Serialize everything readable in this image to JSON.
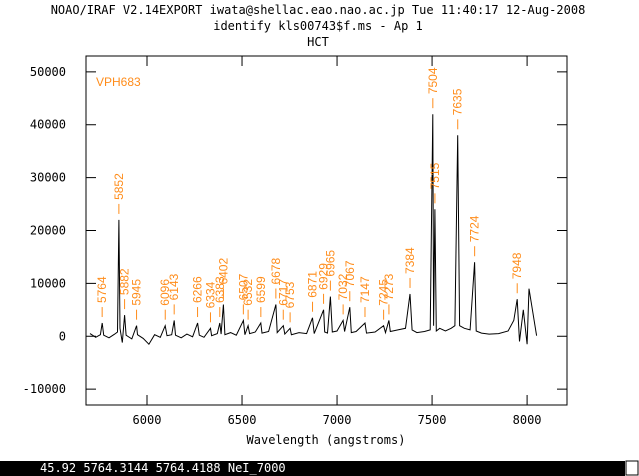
{
  "header": {
    "line1": "NOAO/IRAF V2.14EXPORT iwata@shellac.eao.nao.ac.jp Tue 11:40:17 12-Aug-2008",
    "line2": "identify kls00743$f.ms - Ap 1"
  },
  "status_bar": "45.92  5764.3144  5764.4188 NeI_7000",
  "chart_data": {
    "type": "line",
    "title": "HCT",
    "xlabel": "Wavelength (angstroms)",
    "annotation_title": "VPH683",
    "xlim": [
      5679,
      8210
    ],
    "ylim": [
      -13000,
      53000
    ],
    "xticks": [
      6000,
      6500,
      7000,
      7500,
      8000
    ],
    "yticks": [
      -10000,
      0,
      10000,
      20000,
      30000,
      40000,
      50000
    ],
    "line_color": "#000000",
    "annotation_color": "#ff8c1a",
    "annotations": [
      5764,
      5852,
      5882,
      5945,
      6096,
      6143,
      6266,
      6334,
      6383,
      6402,
      6507,
      6532,
      6599,
      6678,
      6717,
      6753,
      6871,
      6929,
      6965,
      7032,
      7067,
      7147,
      7245,
      7273,
      7384,
      7504,
      7515,
      7635,
      7724,
      7948
    ],
    "x": [
      5700,
      5730,
      5755,
      5764,
      5772,
      5800,
      5830,
      5845,
      5852,
      5858,
      5870,
      5882,
      5890,
      5920,
      5945,
      5950,
      5980,
      6010,
      6040,
      6070,
      6096,
      6105,
      6130,
      6143,
      6150,
      6180,
      6210,
      6240,
      6266,
      6275,
      6300,
      6334,
      6340,
      6370,
      6383,
      6390,
      6402,
      6410,
      6440,
      6470,
      6507,
      6515,
      6532,
      6540,
      6570,
      6599,
      6605,
      6640,
      6678,
      6685,
      6717,
      6725,
      6753,
      6760,
      6800,
      6840,
      6871,
      6880,
      6929,
      6935,
      6950,
      6965,
      6975,
      7000,
      7032,
      7040,
      7067,
      7075,
      7100,
      7147,
      7155,
      7200,
      7245,
      7255,
      7273,
      7280,
      7320,
      7360,
      7384,
      7395,
      7420,
      7460,
      7490,
      7504,
      7508,
      7515,
      7522,
      7540,
      7570,
      7600,
      7620,
      7635,
      7645,
      7670,
      7700,
      7724,
      7732,
      7760,
      7800,
      7850,
      7900,
      7930,
      7948,
      7960,
      7980,
      8000,
      8010,
      8050
    ],
    "values": [
      500,
      -200,
      300,
      2500,
      200,
      -300,
      400,
      800,
      22000,
      1500,
      -1200,
      4000,
      200,
      -500,
      2000,
      300,
      -400,
      -1500,
      300,
      -200,
      2000,
      100,
      300,
      3000,
      200,
      -300,
      400,
      -100,
      2500,
      200,
      -200,
      1500,
      100,
      500,
      2500,
      400,
      6000,
      300,
      700,
      200,
      3000,
      300,
      2000,
      500,
      800,
      2500,
      600,
      900,
      6000,
      700,
      2000,
      400,
      1500,
      300,
      700,
      500,
      3500,
      500,
      5000,
      800,
      600,
      7500,
      800,
      1000,
      3000,
      900,
      5500,
      700,
      900,
      2500,
      600,
      800,
      2000,
      700,
      3000,
      900,
      1200,
      1500,
      8000,
      1200,
      700,
      900,
      1200,
      42000,
      2000,
      24000,
      1000,
      1500,
      1000,
      1500,
      2000,
      38000,
      2000,
      1500,
      1200,
      14000,
      1000,
      600,
      400,
      500,
      1000,
      3000,
      7000,
      -1000,
      5000,
      -1500,
      9000,
      100
    ]
  }
}
